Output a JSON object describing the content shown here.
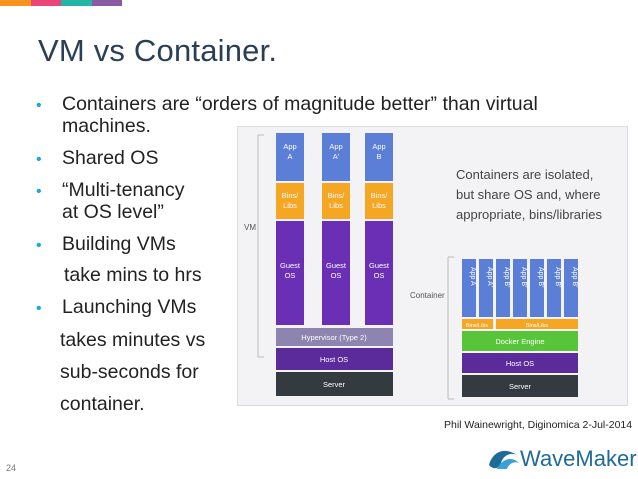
{
  "colors": {
    "accent": "#1aa8e0",
    "title": "#2a3f55",
    "bars": [
      "#f7941d",
      "#e9457a",
      "#23b5a8",
      "#8a5aa3"
    ]
  },
  "slide": {
    "title": "VM vs Container.",
    "bullets": [
      "Containers are “orders of magnitude better” than virtual",
      "Shared OS",
      "“Multi-tenancy",
      "Building VMs",
      "Launching VMs"
    ],
    "continuations": [
      "machines.",
      "at OS level”",
      "take mins to hrs",
      "takes minutes vs",
      "sub-seconds for",
      "container."
    ],
    "credit": "Phil Wainewright, Diginomica 2-Jul-2014",
    "page_number": "24",
    "logo_text": "WaveMaker"
  },
  "figure": {
    "vm_label": "VM",
    "container_label": "Container",
    "caption_lines": [
      "Containers are isolated,",
      "but share OS and, where",
      "appropriate, bins/libraries"
    ],
    "vm_apps": [
      {
        "app": [
          "App",
          "A"
        ],
        "bins": [
          "Bins/",
          "Libs"
        ],
        "guest": [
          "Guest",
          "OS"
        ]
      },
      {
        "app": [
          "App",
          "A'"
        ],
        "bins": [
          "Bins/",
          "Libs"
        ],
        "guest": [
          "Guest",
          "OS"
        ]
      },
      {
        "app": [
          "App",
          "B"
        ],
        "bins": [
          "Bins/",
          "Libs"
        ],
        "guest": [
          "Guest",
          "OS"
        ]
      }
    ],
    "hypervisor": "Hypervisor (Type 2)",
    "host_os": "Host OS",
    "server": "Server",
    "container_apps": [
      "App A",
      "App A'",
      "App B'",
      "App B'",
      "App B'",
      "App B'",
      "App B'"
    ],
    "container_bins": [
      "Bins/Libs",
      "Bins/Libs"
    ],
    "docker_engine": "Docker Engine",
    "container_host_os": "Host OS",
    "container_server": "Server"
  }
}
